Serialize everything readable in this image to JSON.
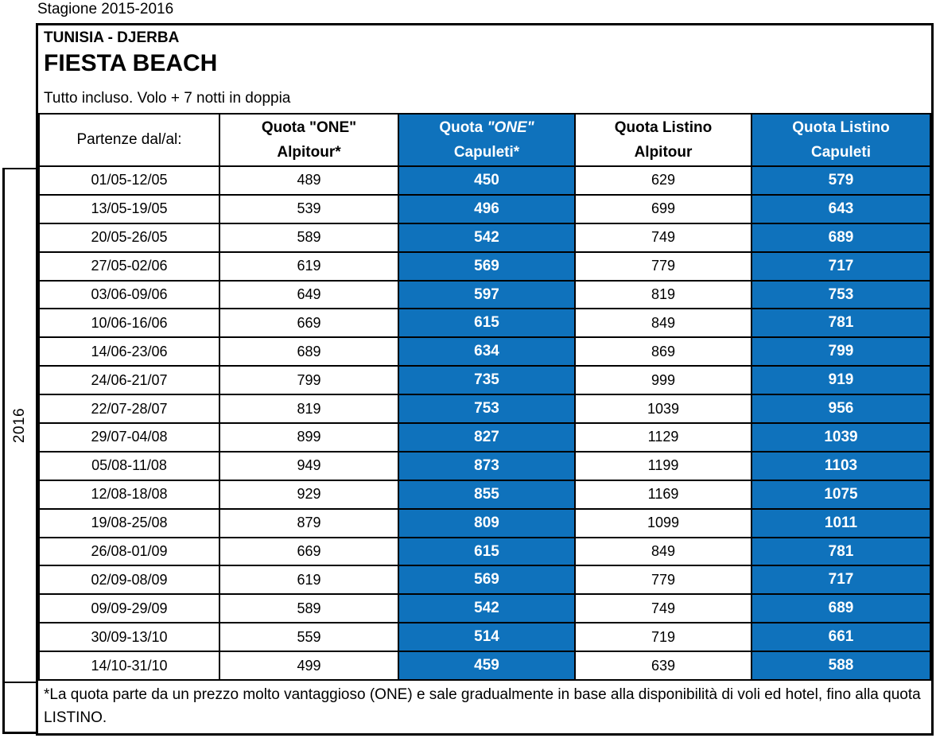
{
  "page": {
    "season_label": "Stagione 2015-2016",
    "year_label": "2016"
  },
  "colors": {
    "accent_blue": "#0F72BC",
    "border_black": "#000000",
    "text_on_blue": "#FFFFFF"
  },
  "header": {
    "destination": "TUNISIA - DJERBA",
    "hotel_name": "FIESTA BEACH",
    "subtitle": "Tutto incluso. Volo + 7 notti in doppia"
  },
  "table": {
    "columns": [
      {
        "label": "Partenze dal/al:"
      },
      {
        "label_line1": "Quota \"ONE\"",
        "label_line2": "Alpitour*"
      },
      {
        "label_line1_prefix": "Quota ",
        "label_line1_italic": "\"ONE\"",
        "label_line2": "Capuleti*"
      },
      {
        "label_line1": "Quota Listino",
        "label_line2": "Alpitour"
      },
      {
        "label_line1": "Quota Listino",
        "label_line2": "Capuleti"
      }
    ],
    "rows": [
      {
        "dates": "01/05-12/05",
        "one_alpitour": 489,
        "one_capuleti": 450,
        "listino_alpitour": 629,
        "listino_capuleti": 579
      },
      {
        "dates": "13/05-19/05",
        "one_alpitour": 539,
        "one_capuleti": 496,
        "listino_alpitour": 699,
        "listino_capuleti": 643
      },
      {
        "dates": "20/05-26/05",
        "one_alpitour": 589,
        "one_capuleti": 542,
        "listino_alpitour": 749,
        "listino_capuleti": 689
      },
      {
        "dates": "27/05-02/06",
        "one_alpitour": 619,
        "one_capuleti": 569,
        "listino_alpitour": 779,
        "listino_capuleti": 717
      },
      {
        "dates": "03/06-09/06",
        "one_alpitour": 649,
        "one_capuleti": 597,
        "listino_alpitour": 819,
        "listino_capuleti": 753
      },
      {
        "dates": "10/06-16/06",
        "one_alpitour": 669,
        "one_capuleti": 615,
        "listino_alpitour": 849,
        "listino_capuleti": 781
      },
      {
        "dates": "14/06-23/06",
        "one_alpitour": 689,
        "one_capuleti": 634,
        "listino_alpitour": 869,
        "listino_capuleti": 799
      },
      {
        "dates": "24/06-21/07",
        "one_alpitour": 799,
        "one_capuleti": 735,
        "listino_alpitour": 999,
        "listino_capuleti": 919
      },
      {
        "dates": "22/07-28/07",
        "one_alpitour": 819,
        "one_capuleti": 753,
        "listino_alpitour": 1039,
        "listino_capuleti": 956
      },
      {
        "dates": "29/07-04/08",
        "one_alpitour": 899,
        "one_capuleti": 827,
        "listino_alpitour": 1129,
        "listino_capuleti": 1039
      },
      {
        "dates": "05/08-11/08",
        "one_alpitour": 949,
        "one_capuleti": 873,
        "listino_alpitour": 1199,
        "listino_capuleti": 1103
      },
      {
        "dates": "12/08-18/08",
        "one_alpitour": 929,
        "one_capuleti": 855,
        "listino_alpitour": 1169,
        "listino_capuleti": 1075
      },
      {
        "dates": "19/08-25/08",
        "one_alpitour": 879,
        "one_capuleti": 809,
        "listino_alpitour": 1099,
        "listino_capuleti": 1011
      },
      {
        "dates": "26/08-01/09",
        "one_alpitour": 669,
        "one_capuleti": 615,
        "listino_alpitour": 849,
        "listino_capuleti": 781
      },
      {
        "dates": "02/09-08/09",
        "one_alpitour": 619,
        "one_capuleti": 569,
        "listino_alpitour": 779,
        "listino_capuleti": 717
      },
      {
        "dates": "09/09-29/09",
        "one_alpitour": 589,
        "one_capuleti": 542,
        "listino_alpitour": 749,
        "listino_capuleti": 689
      },
      {
        "dates": "30/09-13/10",
        "one_alpitour": 559,
        "one_capuleti": 514,
        "listino_alpitour": 719,
        "listino_capuleti": 661
      },
      {
        "dates": "14/10-31/10",
        "one_alpitour": 499,
        "one_capuleti": 459,
        "listino_alpitour": 639,
        "listino_capuleti": 588
      }
    ]
  },
  "footnote": "*La quota parte da un prezzo molto vantaggioso (ONE) e sale gradualmente in base alla disponibilità di voli ed hotel, fino alla quota LISTINO."
}
